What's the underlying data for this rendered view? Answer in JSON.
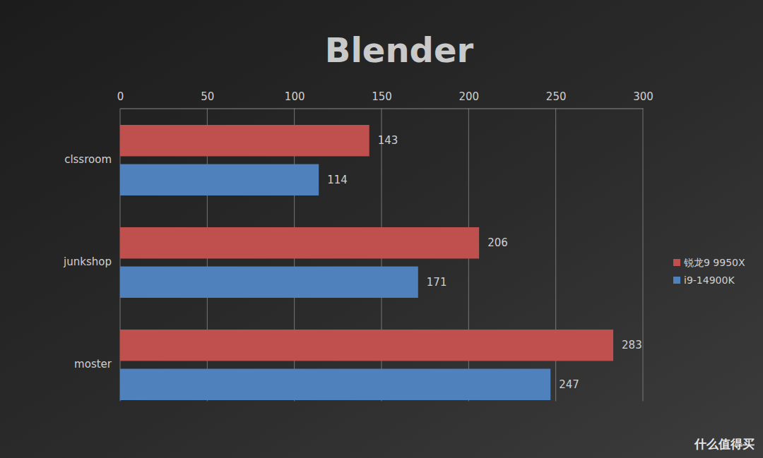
{
  "chart_data": {
    "type": "bar",
    "title": "Blender",
    "orientation": "horizontal",
    "categories": [
      "clssroom",
      "junkshop",
      "moster"
    ],
    "series": [
      {
        "name": "锐龙9 9950X",
        "color": "#c0504d",
        "values": [
          143,
          206,
          283
        ]
      },
      {
        "name": "i9-14900K",
        "color": "#4f81bd",
        "values": [
          114,
          171,
          247
        ]
      }
    ],
    "xlim": [
      0,
      300
    ],
    "xticks": [
      0,
      50,
      100,
      150,
      200,
      250,
      300
    ],
    "grid": true,
    "data_labels": true,
    "legend": "right",
    "annotations": [
      "什么值得买"
    ]
  }
}
